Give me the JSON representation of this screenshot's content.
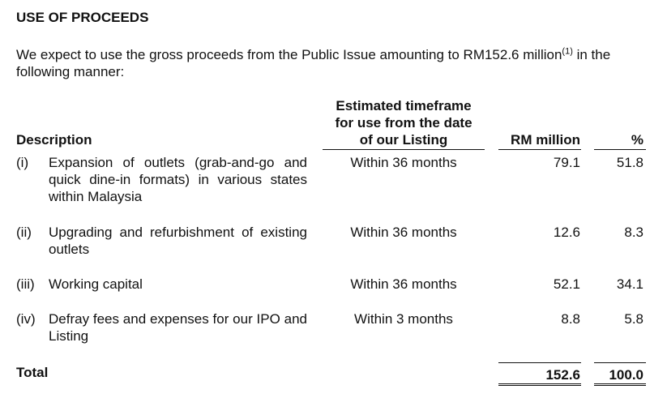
{
  "heading": "USE OF PROCEEDS",
  "intro": {
    "text": "We expect to use the gross proceeds from the Public Issue amounting to RM152.6 million",
    "note": "(1)",
    "tail": " in the following manner:"
  },
  "table": {
    "header": {
      "description": "Description",
      "timeframe": [
        "Estimated timeframe",
        "for use from the date",
        "of our Listing"
      ],
      "amount": "RM million",
      "percent": "%"
    },
    "rows": [
      {
        "no": "(i)",
        "description": "Expansion of outlets (grab-and-go and quick dine-in formats) in various states within Malaysia",
        "timeframe": "Within 36 months",
        "amount": "79.1",
        "percent": "51.8"
      },
      {
        "no": "(ii)",
        "description": "Upgrading and refurbishment of existing outlets",
        "timeframe": "Within 36 months",
        "amount": "12.6",
        "percent": "8.3"
      },
      {
        "no": "(iii)",
        "description": "Working capital",
        "timeframe": "Within 36 months",
        "amount": "52.1",
        "percent": "34.1"
      },
      {
        "no": "(iv)",
        "description": "Defray fees and expenses for our IPO and Listing",
        "timeframe": "Within 3 months",
        "amount": "8.8",
        "percent": "5.8"
      }
    ],
    "total": {
      "label": "Total",
      "amount": "152.6",
      "percent": "100.0"
    }
  }
}
